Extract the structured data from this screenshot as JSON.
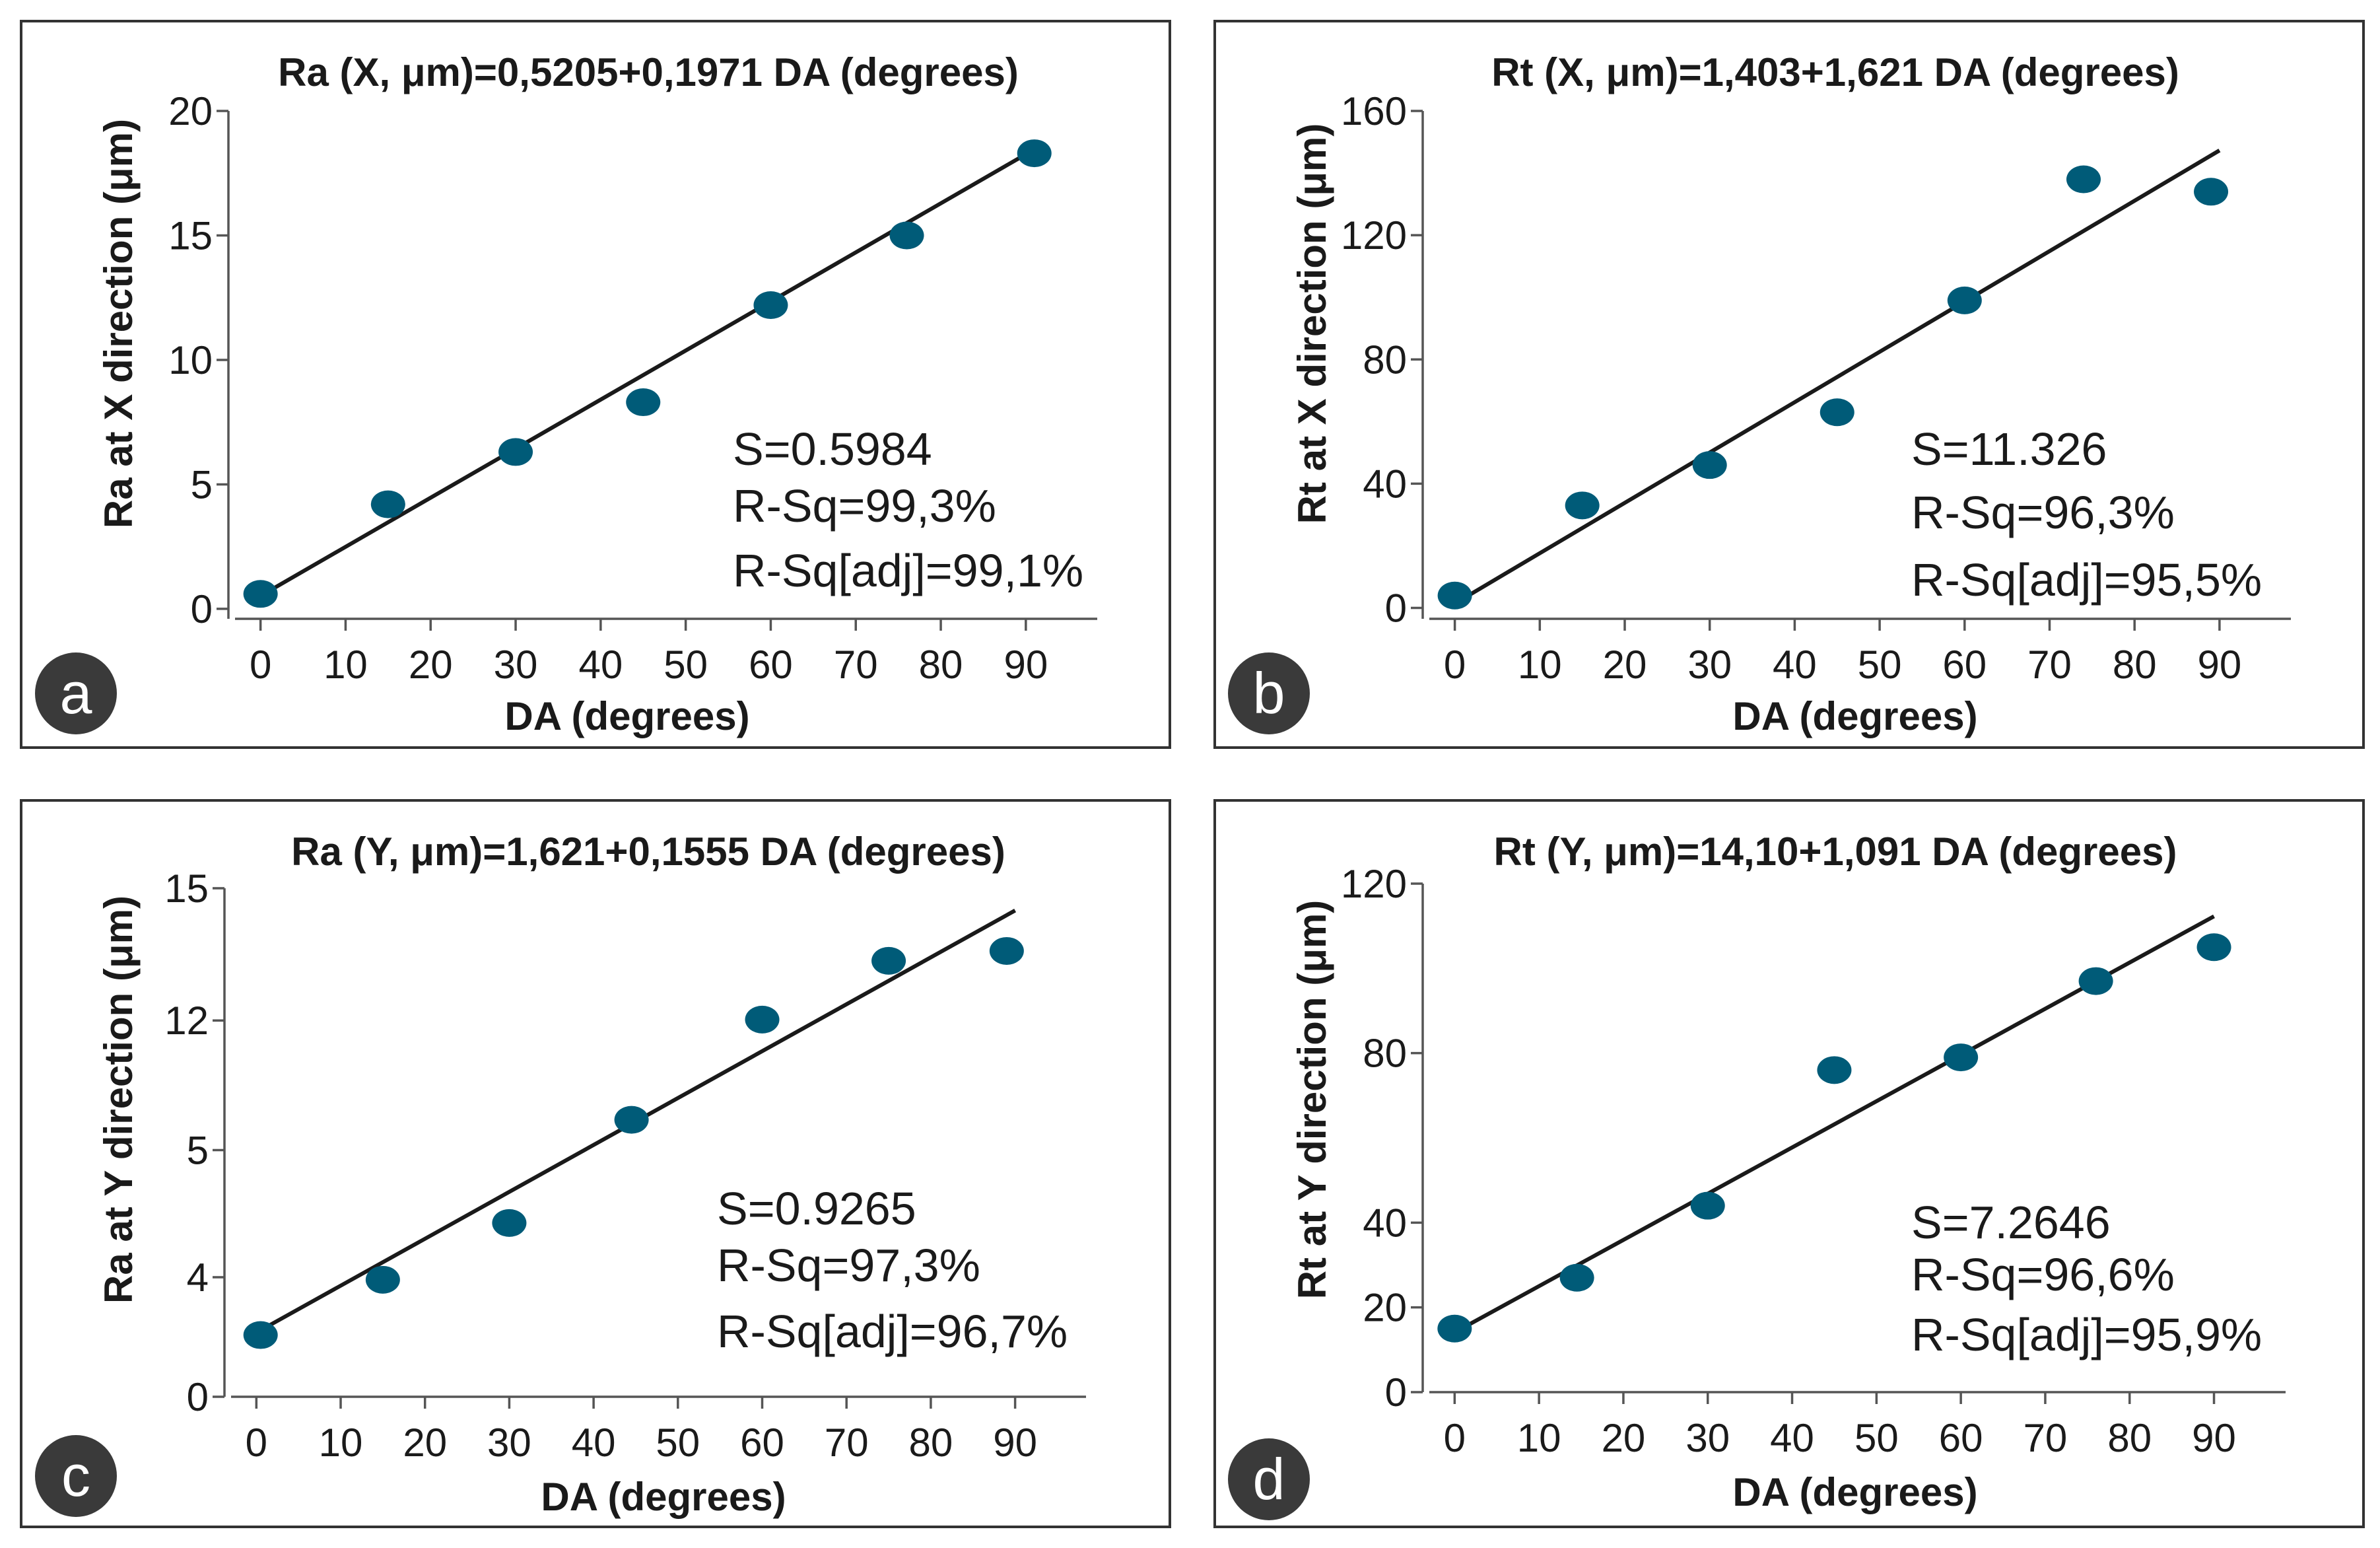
{
  "panels": [
    {
      "letter": "a",
      "title": "Ra (X, μm)=0,5205+0,1971 DA (degrees)",
      "ylabel": "Ra at X direction (μm)",
      "xlabel": "DA (degrees)",
      "stats": [
        "S=0.5984",
        "R-Sq=99,3%",
        "R-Sq[adj]=99,1%"
      ]
    },
    {
      "letter": "b",
      "title": "Rt (X, μm)=1,403+1,621 DA (degrees)",
      "ylabel": "Rt at X direction (μm)",
      "xlabel": "DA (degrees)",
      "stats": [
        "S=11.326",
        "R-Sq=96,3%",
        "R-Sq[adj]=95,5%"
      ]
    },
    {
      "letter": "c",
      "title": "Ra (Y, μm)=1,621+0,1555 DA (degrees)",
      "ylabel": "Ra at Y direction (μm)",
      "xlabel": "DA (degrees)",
      "stats": [
        "S=0.9265",
        "R-Sq=97,3%",
        "R-Sq[adj]=96,7%"
      ]
    },
    {
      "letter": "d",
      "title": "Rt (Y, μm)=14,10+1,091 DA (degrees)",
      "ylabel": "Rt at Y direction (μm)",
      "xlabel": "DA (degrees)",
      "stats": [
        "S=7.2646",
        "R-Sq=96,6%",
        "R-Sq[adj]=95,9%"
      ]
    }
  ],
  "colors": {
    "points": "#005b78",
    "fit_line": "#1a1a1a",
    "frame": "#333333",
    "axis": "#555555"
  },
  "chart_data": [
    {
      "type": "scatter",
      "title": "Ra (X, μm)=0,5205+0,1971 DA (degrees)",
      "xlabel": "DA (degrees)",
      "ylabel": "Ra at X direction (μm)",
      "x_ticks": [
        0,
        10,
        20,
        30,
        40,
        50,
        60,
        70,
        80,
        90
      ],
      "y_ticks": [
        0,
        5,
        10,
        15,
        20
      ],
      "y_tick_labels": [
        "0",
        "5",
        "10",
        "15",
        "20"
      ],
      "xlim": [
        -3,
        97
      ],
      "ylim": [
        -0.4,
        20
      ],
      "x": [
        0,
        15,
        30,
        45,
        60,
        76,
        91
      ],
      "y": [
        0.6,
        4.2,
        6.3,
        8.3,
        12.2,
        15.0,
        18.3
      ],
      "fit": {
        "intercept": 0.5205,
        "slope": 0.1971,
        "x_range": [
          0,
          90
        ]
      }
    },
    {
      "type": "scatter",
      "title": "Rt (X, μm)=1,403+1,621 DA (degrees)",
      "xlabel": "DA (degrees)",
      "ylabel": "Rt at X direction (μm)",
      "x_ticks": [
        0,
        10,
        20,
        30,
        40,
        50,
        60,
        70,
        80,
        90
      ],
      "y_ticks": [
        0,
        40,
        80,
        120,
        160
      ],
      "y_tick_labels": [
        "0",
        "40",
        "80",
        "120",
        "160"
      ],
      "xlim": [
        -3,
        97
      ],
      "ylim": [
        -3.5,
        160
      ],
      "x": [
        0,
        15,
        30,
        45,
        60,
        74,
        89
      ],
      "y": [
        4,
        33,
        46,
        63,
        99,
        138,
        134
      ],
      "fit": {
        "intercept": 1.403,
        "slope": 1.621,
        "x_range": [
          0,
          90
        ]
      }
    },
    {
      "type": "scatter",
      "title": "Ra (Y, μm)=1,621+0,1555 DA (degrees)",
      "xlabel": "DA (degrees)",
      "ylabel": "Ra at Y direction (μm)",
      "x_ticks": [
        0,
        10,
        20,
        30,
        40,
        50,
        60,
        70,
        80,
        90
      ],
      "y_ticks": [
        0,
        4,
        5,
        12,
        15
      ],
      "y_tick_labels": [
        "0",
        "4",
        "5",
        "12",
        "15"
      ],
      "note": "axis tick labels are printed unevenly spaced in the original (0, 4, 5, 12, 15); points are given as fractions of the plotted range",
      "xlim": [
        -3,
        97
      ],
      "ylim": [
        -0.03,
        1.0
      ],
      "x": [
        0.5,
        15,
        30,
        44.5,
        60,
        75,
        89
      ],
      "y": [
        0.095,
        0.207,
        0.322,
        0.531,
        0.734,
        0.853,
        0.873
      ],
      "fit": {
        "x_range": [
          0,
          90
        ],
        "y_at_start": 0.1,
        "y_at_end": 0.955
      }
    },
    {
      "type": "scatter",
      "title": "Rt (Y, μm)=14,10+1,091 DA (degrees)",
      "xlabel": "DA (degrees)",
      "ylabel": "Rt at Y direction (μm)",
      "x_ticks": [
        0,
        10,
        20,
        30,
        40,
        50,
        60,
        70,
        80,
        90
      ],
      "y_ticks": [
        0,
        20,
        40,
        80,
        120
      ],
      "y_tick_labels": [
        "0",
        "20",
        "40",
        "80",
        "120"
      ],
      "xlim": [
        -3,
        97
      ],
      "ylim": [
        0,
        120
      ],
      "x": [
        0,
        14.5,
        30,
        45,
        60,
        76,
        90
      ],
      "y": [
        15,
        27,
        44,
        76,
        79,
        97,
        105
      ],
      "fit": {
        "intercept": 14.1,
        "slope": 1.091,
        "x_range": [
          0,
          90
        ]
      }
    }
  ]
}
